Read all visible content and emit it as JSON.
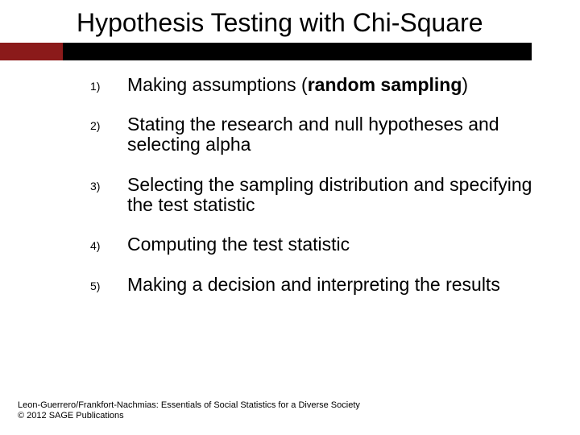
{
  "title": "Hypothesis Testing with Chi-Square",
  "title_fontsize": 32,
  "title_color": "#000000",
  "bar": {
    "black_width": 660,
    "red_width": 78,
    "height": 22,
    "black_color": "#000000",
    "red_color": "#8b1a1a"
  },
  "steps": [
    {
      "marker": "1)",
      "plain_before": "Making assumptions (",
      "bold": "random sampling",
      "plain_after": ")"
    },
    {
      "marker": "2)",
      "plain_before": "Stating the research and null hypotheses and selecting alpha",
      "bold": "",
      "plain_after": ""
    },
    {
      "marker": "3)",
      "plain_before": "Selecting the sampling distribution and specifying the test statistic",
      "bold": "",
      "plain_after": ""
    },
    {
      "marker": "4)",
      "plain_before": "Computing the test statistic",
      "bold": "",
      "plain_after": ""
    },
    {
      "marker": "5)",
      "plain_before": "Making a decision and interpreting the results",
      "bold": "",
      "plain_after": ""
    }
  ],
  "step_fontsize": 23,
  "marker_fontsize": 14,
  "footer": {
    "line1": "Leon-Guerrero/Frankfort-Nachmias: Essentials of Social Statistics for a Diverse Society",
    "line2": "© 2012 SAGE Publications",
    "fontsize": 11
  },
  "background_color": "#ffffff"
}
